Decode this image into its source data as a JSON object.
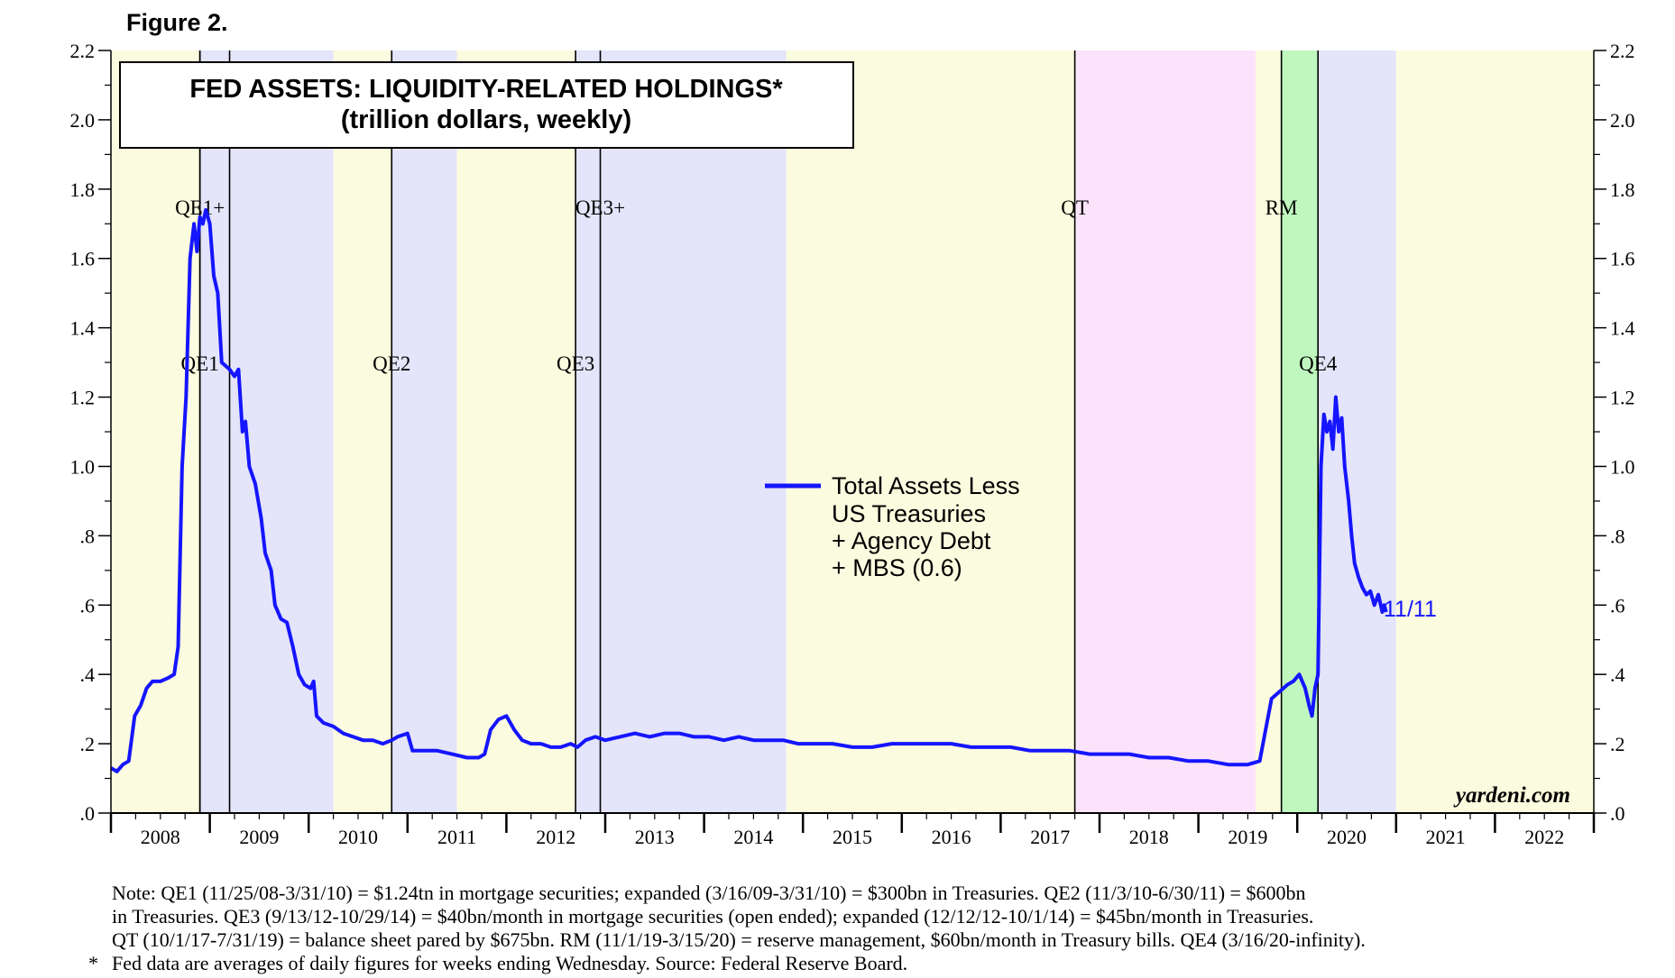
{
  "figure_label": "Figure 2.",
  "source_brand": "yardeni.com",
  "colors": {
    "line": "#1515ff",
    "qe_yellow": "#fbfbdf",
    "qe_lavender": "#e4e4fa",
    "qt_pink": "#fbe4fb",
    "rm_green": "#bff7bf",
    "end_label": "#1515ff"
  },
  "chart_data": {
    "type": "line",
    "title": "FED ASSETS: LIQUIDITY-RELATED HOLDINGS*",
    "subtitle": "(trillion dollars, weekly)",
    "xlabel": "",
    "ylabel": "",
    "xlim": [
      2008,
      2023
    ],
    "ylim": [
      0,
      2.2
    ],
    "y_ticks": [
      0,
      0.2,
      0.4,
      0.6,
      0.8,
      1.0,
      1.2,
      1.4,
      1.6,
      1.8,
      2.0,
      2.2
    ],
    "y_tick_labels": [
      ".0",
      ".2",
      ".4",
      ".6",
      ".8",
      "1.0",
      "1.2",
      "1.4",
      "1.6",
      "1.8",
      "2.0",
      "2.2"
    ],
    "x_tick_labels": [
      "2008",
      "2009",
      "2010",
      "2011",
      "2012",
      "2013",
      "2014",
      "2015",
      "2016",
      "2017",
      "2018",
      "2019",
      "2020",
      "2021",
      "2022"
    ],
    "legend": {
      "entries": [
        "Total Assets Less",
        "US Treasuries",
        "+ Agency Debt",
        "+ MBS (0.6)"
      ],
      "position": "center-right"
    },
    "end_label": "11/11",
    "shaded_periods": [
      {
        "from": 2008.0,
        "to": 2008.9,
        "color": "qe_yellow"
      },
      {
        "from": 2008.9,
        "to": 2010.25,
        "color": "qe_lavender"
      },
      {
        "from": 2010.25,
        "to": 2010.84,
        "color": "qe_yellow"
      },
      {
        "from": 2010.84,
        "to": 2011.5,
        "color": "qe_lavender"
      },
      {
        "from": 2011.5,
        "to": 2012.7,
        "color": "qe_yellow"
      },
      {
        "from": 2012.7,
        "to": 2014.83,
        "color": "qe_lavender"
      },
      {
        "from": 2014.83,
        "to": 2017.75,
        "color": "qe_yellow"
      },
      {
        "from": 2017.75,
        "to": 2019.58,
        "color": "qt_pink"
      },
      {
        "from": 2019.58,
        "to": 2019.84,
        "color": "qe_yellow"
      },
      {
        "from": 2019.84,
        "to": 2020.21,
        "color": "rm_green"
      },
      {
        "from": 2020.21,
        "to": 2021.0,
        "color": "qe_lavender"
      },
      {
        "from": 2021.0,
        "to": 2023.0,
        "color": "qe_yellow"
      }
    ],
    "event_lines": [
      {
        "x": 2008.9,
        "label": "QE1",
        "label_y": 1.3
      },
      {
        "x": 2008.9,
        "label": "QE1+",
        "label_y": 1.75
      },
      {
        "x": 2009.2,
        "label": "",
        "label_y": null
      },
      {
        "x": 2010.84,
        "label": "QE2",
        "label_y": 1.3
      },
      {
        "x": 2012.7,
        "label": "QE3",
        "label_y": 1.3
      },
      {
        "x": 2012.95,
        "label": "QE3+",
        "label_y": 1.75
      },
      {
        "x": 2017.75,
        "label": "QT",
        "label_y": 1.75
      },
      {
        "x": 2019.84,
        "label": "RM",
        "label_y": 1.75
      },
      {
        "x": 2020.21,
        "label": "QE4",
        "label_y": 1.3
      }
    ],
    "series": [
      {
        "name": "Total Assets Less US Treasuries + Agency Debt + MBS",
        "points": [
          [
            2008.0,
            0.13
          ],
          [
            2008.06,
            0.12
          ],
          [
            2008.12,
            0.14
          ],
          [
            2008.18,
            0.15
          ],
          [
            2008.24,
            0.28
          ],
          [
            2008.3,
            0.31
          ],
          [
            2008.36,
            0.36
          ],
          [
            2008.42,
            0.38
          ],
          [
            2008.5,
            0.38
          ],
          [
            2008.58,
            0.39
          ],
          [
            2008.64,
            0.4
          ],
          [
            2008.68,
            0.48
          ],
          [
            2008.72,
            1.0
          ],
          [
            2008.76,
            1.2
          ],
          [
            2008.8,
            1.6
          ],
          [
            2008.84,
            1.7
          ],
          [
            2008.87,
            1.62
          ],
          [
            2008.9,
            1.72
          ],
          [
            2008.93,
            1.7
          ],
          [
            2008.96,
            1.74
          ],
          [
            2009.0,
            1.7
          ],
          [
            2009.04,
            1.55
          ],
          [
            2009.08,
            1.5
          ],
          [
            2009.12,
            1.3
          ],
          [
            2009.16,
            1.29
          ],
          [
            2009.2,
            1.28
          ],
          [
            2009.25,
            1.26
          ],
          [
            2009.29,
            1.28
          ],
          [
            2009.33,
            1.1
          ],
          [
            2009.36,
            1.13
          ],
          [
            2009.4,
            1.0
          ],
          [
            2009.46,
            0.95
          ],
          [
            2009.52,
            0.85
          ],
          [
            2009.56,
            0.75
          ],
          [
            2009.62,
            0.7
          ],
          [
            2009.66,
            0.6
          ],
          [
            2009.72,
            0.56
          ],
          [
            2009.78,
            0.55
          ],
          [
            2009.84,
            0.48
          ],
          [
            2009.9,
            0.4
          ],
          [
            2009.96,
            0.37
          ],
          [
            2010.02,
            0.36
          ],
          [
            2010.05,
            0.38
          ],
          [
            2010.08,
            0.28
          ],
          [
            2010.15,
            0.26
          ],
          [
            2010.25,
            0.25
          ],
          [
            2010.35,
            0.23
          ],
          [
            2010.45,
            0.22
          ],
          [
            2010.55,
            0.21
          ],
          [
            2010.65,
            0.21
          ],
          [
            2010.75,
            0.2
          ],
          [
            2010.84,
            0.21
          ],
          [
            2010.9,
            0.22
          ],
          [
            2011.0,
            0.23
          ],
          [
            2011.05,
            0.18
          ],
          [
            2011.15,
            0.18
          ],
          [
            2011.3,
            0.18
          ],
          [
            2011.45,
            0.17
          ],
          [
            2011.6,
            0.16
          ],
          [
            2011.72,
            0.16
          ],
          [
            2011.78,
            0.17
          ],
          [
            2011.84,
            0.24
          ],
          [
            2011.92,
            0.27
          ],
          [
            2012.0,
            0.28
          ],
          [
            2012.08,
            0.24
          ],
          [
            2012.16,
            0.21
          ],
          [
            2012.25,
            0.2
          ],
          [
            2012.35,
            0.2
          ],
          [
            2012.45,
            0.19
          ],
          [
            2012.55,
            0.19
          ],
          [
            2012.65,
            0.2
          ],
          [
            2012.72,
            0.19
          ],
          [
            2012.8,
            0.21
          ],
          [
            2012.9,
            0.22
          ],
          [
            2013.0,
            0.21
          ],
          [
            2013.15,
            0.22
          ],
          [
            2013.3,
            0.23
          ],
          [
            2013.45,
            0.22
          ],
          [
            2013.6,
            0.23
          ],
          [
            2013.75,
            0.23
          ],
          [
            2013.9,
            0.22
          ],
          [
            2014.05,
            0.22
          ],
          [
            2014.2,
            0.21
          ],
          [
            2014.35,
            0.22
          ],
          [
            2014.5,
            0.21
          ],
          [
            2014.65,
            0.21
          ],
          [
            2014.8,
            0.21
          ],
          [
            2014.95,
            0.2
          ],
          [
            2015.1,
            0.2
          ],
          [
            2015.3,
            0.2
          ],
          [
            2015.5,
            0.19
          ],
          [
            2015.7,
            0.19
          ],
          [
            2015.9,
            0.2
          ],
          [
            2016.1,
            0.2
          ],
          [
            2016.3,
            0.2
          ],
          [
            2016.5,
            0.2
          ],
          [
            2016.7,
            0.19
          ],
          [
            2016.9,
            0.19
          ],
          [
            2017.1,
            0.19
          ],
          [
            2017.3,
            0.18
          ],
          [
            2017.5,
            0.18
          ],
          [
            2017.7,
            0.18
          ],
          [
            2017.9,
            0.17
          ],
          [
            2018.1,
            0.17
          ],
          [
            2018.3,
            0.17
          ],
          [
            2018.5,
            0.16
          ],
          [
            2018.7,
            0.16
          ],
          [
            2018.9,
            0.15
          ],
          [
            2019.1,
            0.15
          ],
          [
            2019.3,
            0.14
          ],
          [
            2019.5,
            0.14
          ],
          [
            2019.62,
            0.15
          ],
          [
            2019.68,
            0.24
          ],
          [
            2019.74,
            0.33
          ],
          [
            2019.82,
            0.35
          ],
          [
            2019.9,
            0.37
          ],
          [
            2019.96,
            0.38
          ],
          [
            2020.02,
            0.4
          ],
          [
            2020.08,
            0.36
          ],
          [
            2020.12,
            0.31
          ],
          [
            2020.15,
            0.28
          ],
          [
            2020.18,
            0.36
          ],
          [
            2020.21,
            0.4
          ],
          [
            2020.24,
            1.0
          ],
          [
            2020.27,
            1.15
          ],
          [
            2020.3,
            1.1
          ],
          [
            2020.33,
            1.13
          ],
          [
            2020.36,
            1.05
          ],
          [
            2020.39,
            1.2
          ],
          [
            2020.42,
            1.1
          ],
          [
            2020.45,
            1.14
          ],
          [
            2020.48,
            1.0
          ],
          [
            2020.52,
            0.9
          ],
          [
            2020.55,
            0.8
          ],
          [
            2020.58,
            0.72
          ],
          [
            2020.62,
            0.68
          ],
          [
            2020.66,
            0.65
          ],
          [
            2020.7,
            0.63
          ],
          [
            2020.74,
            0.64
          ],
          [
            2020.78,
            0.6
          ],
          [
            2020.82,
            0.63
          ],
          [
            2020.86,
            0.58
          ],
          [
            2020.88,
            0.6
          ],
          [
            2020.9,
            0.58
          ]
        ]
      }
    ]
  },
  "notes": {
    "line1": "Note: QE1 (11/25/08-3/31/10) = $1.24tn in mortgage securities; expanded (3/16/09-3/31/10) = $300bn in Treasuries. QE2 (11/3/10-6/30/11) = $600bn",
    "line2": "in Treasuries. QE3 (9/13/12-10/29/14) = $40bn/month in mortgage securities (open ended); expanded (12/12/12-10/1/14) = $45bn/month in Treasuries.",
    "line3": "QT (10/1/17-7/31/19) = balance sheet pared by $675bn. RM (11/1/19-3/15/20) = reserve management, $60bn/month in Treasury bills. QE4 (3/16/20-infinity).",
    "star": "*",
    "line4": "Fed data are averages of daily figures for weeks ending Wednesday. Source: Federal Reserve Board."
  }
}
